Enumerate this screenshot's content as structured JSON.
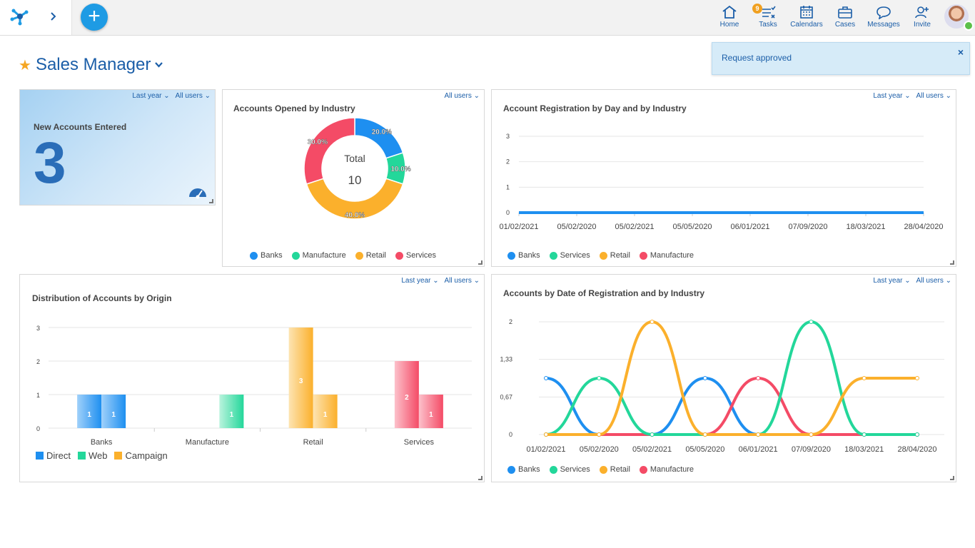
{
  "colors": {
    "blue": "#1e8ff0",
    "green": "#23d79a",
    "orange": "#fbb02c",
    "red": "#f44b66",
    "brand": "#1b5ea8"
  },
  "topbar": {
    "nav": [
      {
        "label": "Home",
        "icon": "home-icon"
      },
      {
        "label": "Tasks",
        "icon": "tasks-icon",
        "badge": "9"
      },
      {
        "label": "Calendars",
        "icon": "calendar-icon"
      },
      {
        "label": "Cases",
        "icon": "briefcase-icon"
      },
      {
        "label": "Messages",
        "icon": "chat-icon"
      },
      {
        "label": "Invite",
        "icon": "add-user-icon"
      }
    ],
    "add_label": "+"
  },
  "page": {
    "title": "Sales Manager"
  },
  "toast": {
    "message": "Request approved",
    "close": "×"
  },
  "filters": {
    "period": "Last year",
    "users": "All users"
  },
  "kpi": {
    "label": "New Accounts Entered",
    "value": "3"
  },
  "donut": {
    "title": "Accounts Opened by Industry",
    "center_label": "Total",
    "center_value": "10",
    "legend": [
      "Banks",
      "Manufacture",
      "Retail",
      "Services"
    ]
  },
  "line1": {
    "title": "Account Registration by Day and by Industry",
    "legend": [
      "Banks",
      "Services",
      "Retail",
      "Manufacture"
    ]
  },
  "bars": {
    "title": "Distribution of Accounts by Origin",
    "legend": [
      "Direct",
      "Web",
      "Campaign"
    ]
  },
  "line2": {
    "title": "Accounts by Date of Registration and by Industry",
    "legend": [
      "Banks",
      "Services",
      "Retail",
      "Manufacture"
    ]
  },
  "chart_data": [
    {
      "type": "pie",
      "title": "Accounts Opened by Industry",
      "categories": [
        "Banks",
        "Manufacture",
        "Retail",
        "Services"
      ],
      "values": [
        2,
        1,
        4,
        3
      ],
      "labels": [
        "20.0%",
        "10.0%",
        "40.0%",
        "30.0%"
      ],
      "colors": [
        "#1e8ff0",
        "#23d79a",
        "#fbb02c",
        "#f44b66"
      ]
    },
    {
      "type": "line",
      "title": "Account Registration by Day and by Industry",
      "x": [
        "01/02/2021",
        "05/02/2020",
        "05/02/2021",
        "05/05/2020",
        "06/01/2021",
        "07/09/2020",
        "18/03/2021",
        "28/04/2020"
      ],
      "yticks": [
        "0",
        "1",
        "2",
        "3"
      ],
      "ylim": [
        0,
        3
      ],
      "series": [
        {
          "name": "Banks",
          "values": [
            0,
            0,
            0,
            0,
            0,
            0,
            0,
            0
          ]
        }
      ]
    },
    {
      "type": "bar",
      "title": "Distribution of Accounts by Origin",
      "categories": [
        "Banks",
        "Manufacture",
        "Retail",
        "Services"
      ],
      "yticks": [
        "0",
        "1",
        "2",
        "3"
      ],
      "ylim": [
        0,
        3
      ],
      "series": [
        {
          "name": "Direct",
          "color": "#1e8ff0",
          "values": [
            1,
            0,
            0,
            0
          ]
        },
        {
          "name": "Web",
          "color": "#23d79a",
          "values": [
            1,
            1,
            0,
            0
          ]
        },
        {
          "name": "Campaign",
          "color": "#fbb02c",
          "values": [
            0,
            0,
            3,
            1
          ]
        },
        {
          "name": "Services",
          "color": "#f44b66",
          "values": [
            0,
            0,
            0,
            2
          ]
        },
        {
          "name": "",
          "color": "#f44b66",
          "values": [
            0,
            0,
            0,
            1
          ]
        }
      ],
      "bars": [
        {
          "category": "Banks",
          "value": 1,
          "color": "#1e8ff0"
        },
        {
          "category": "Banks",
          "value": 1,
          "color": "#1e8ff0"
        },
        {
          "category": "Manufacture",
          "value": 1,
          "color": "#23d79a"
        },
        {
          "category": "Retail",
          "value": 3,
          "color": "#fbb02c"
        },
        {
          "category": "Retail",
          "value": 1,
          "color": "#fbb02c"
        },
        {
          "category": "Services",
          "value": 2,
          "color": "#f44b66"
        },
        {
          "category": "Services",
          "value": 1,
          "color": "#f44b66"
        }
      ]
    },
    {
      "type": "line",
      "title": "Accounts by Date of Registration and by Industry",
      "x": [
        "01/02/2021",
        "05/02/2020",
        "05/02/2021",
        "05/05/2020",
        "06/01/2021",
        "07/09/2020",
        "18/03/2021",
        "28/04/2020"
      ],
      "yticks": [
        "0",
        "0,67",
        "1,33",
        "2"
      ],
      "ylim": [
        0,
        2
      ],
      "series": [
        {
          "name": "Banks",
          "color": "#1e8ff0",
          "values": [
            1,
            0,
            0,
            1,
            0,
            0,
            0,
            0
          ]
        },
        {
          "name": "Services",
          "color": "#23d79a",
          "values": [
            0,
            1,
            0,
            0,
            0,
            2,
            0,
            0
          ]
        },
        {
          "name": "Retail",
          "color": "#fbb02c",
          "values": [
            0,
            0,
            2,
            0,
            0,
            0,
            1,
            1
          ]
        },
        {
          "name": "Manufacture",
          "color": "#f44b66",
          "values": [
            0,
            0,
            0,
            0,
            1,
            0,
            0,
            0
          ]
        }
      ]
    }
  ]
}
